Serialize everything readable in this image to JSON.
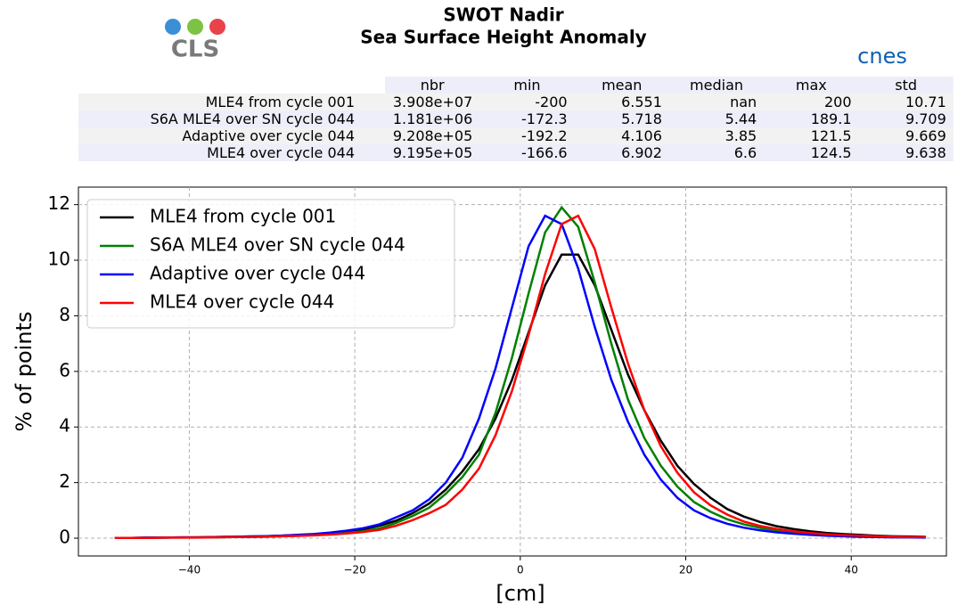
{
  "header": {
    "title": "SWOT Nadir",
    "subtitle": "Sea Surface Height Anomaly",
    "logos": [
      "CLS",
      "cnes"
    ]
  },
  "table": {
    "columns": [
      "nbr",
      "min",
      "mean",
      "median",
      "max",
      "std"
    ],
    "rows": [
      {
        "label": "MLE4 from cycle 001",
        "cells": [
          "3.908e+07",
          "-200",
          "6.551",
          "nan",
          "200",
          "10.71"
        ]
      },
      {
        "label": "S6A MLE4 over SN cycle 044",
        "cells": [
          "1.181e+06",
          "-172.3",
          "5.718",
          "5.44",
          "189.1",
          "9.709"
        ]
      },
      {
        "label": "Adaptive over cycle 044",
        "cells": [
          "9.208e+05",
          "-192.2",
          "4.106",
          "3.85",
          "121.5",
          "9.669"
        ]
      },
      {
        "label": "MLE4 over cycle 044",
        "cells": [
          "9.195e+05",
          "-166.6",
          "6.902",
          "6.6",
          "124.5",
          "9.638"
        ]
      }
    ]
  },
  "chart_data": {
    "type": "line",
    "x_label": "[cm]",
    "y_label": "% of points",
    "x": [
      -49,
      -47,
      -45,
      -43,
      -41,
      -39,
      -37,
      -35,
      -33,
      -31,
      -29,
      -27,
      -25,
      -23,
      -21,
      -19,
      -17,
      -15,
      -13,
      -11,
      -9,
      -7,
      -5,
      -3,
      -1,
      1,
      3,
      5,
      7,
      9,
      11,
      13,
      15,
      17,
      19,
      21,
      23,
      25,
      27,
      29,
      31,
      33,
      35,
      37,
      39,
      41,
      43,
      45,
      47,
      49
    ],
    "series": [
      {
        "name": "MLE4 from cycle 001",
        "color": "#000000",
        "values": [
          0.01,
          0.01,
          0.02,
          0.02,
          0.03,
          0.03,
          0.04,
          0.05,
          0.06,
          0.07,
          0.09,
          0.11,
          0.14,
          0.18,
          0.24,
          0.32,
          0.45,
          0.63,
          0.9,
          1.25,
          1.75,
          2.4,
          3.2,
          4.3,
          5.7,
          7.4,
          9.1,
          10.2,
          10.2,
          9.1,
          7.5,
          5.9,
          4.6,
          3.5,
          2.6,
          1.95,
          1.45,
          1.05,
          0.78,
          0.58,
          0.43,
          0.33,
          0.25,
          0.19,
          0.15,
          0.12,
          0.09,
          0.07,
          0.06,
          0.05
        ]
      },
      {
        "name": "S6A MLE4 over SN cycle 044",
        "color": "#008000",
        "values": [
          0.01,
          0.01,
          0.01,
          0.02,
          0.02,
          0.03,
          0.03,
          0.04,
          0.05,
          0.06,
          0.07,
          0.09,
          0.11,
          0.14,
          0.19,
          0.25,
          0.35,
          0.55,
          0.8,
          1.1,
          1.6,
          2.2,
          3.0,
          4.5,
          6.5,
          8.8,
          11.0,
          11.9,
          11.2,
          9.2,
          7.0,
          5.0,
          3.6,
          2.6,
          1.85,
          1.3,
          0.95,
          0.68,
          0.5,
          0.37,
          0.28,
          0.21,
          0.16,
          0.12,
          0.1,
          0.08,
          0.06,
          0.05,
          0.04,
          0.03
        ]
      },
      {
        "name": "Adaptive over cycle 044",
        "color": "#0000ff",
        "values": [
          0.01,
          0.01,
          0.02,
          0.02,
          0.03,
          0.03,
          0.04,
          0.05,
          0.06,
          0.07,
          0.09,
          0.12,
          0.15,
          0.2,
          0.27,
          0.36,
          0.5,
          0.75,
          1.0,
          1.4,
          2.0,
          2.9,
          4.3,
          6.1,
          8.3,
          10.5,
          11.6,
          11.3,
          9.7,
          7.6,
          5.7,
          4.2,
          3.0,
          2.1,
          1.45,
          1.0,
          0.72,
          0.52,
          0.38,
          0.28,
          0.21,
          0.16,
          0.12,
          0.09,
          0.07,
          0.05,
          0.04,
          0.03,
          0.03,
          0.02
        ]
      },
      {
        "name": "MLE4 over cycle 044",
        "color": "#ff0000",
        "values": [
          0.01,
          0.01,
          0.01,
          0.02,
          0.02,
          0.02,
          0.03,
          0.04,
          0.04,
          0.05,
          0.07,
          0.08,
          0.1,
          0.13,
          0.17,
          0.22,
          0.3,
          0.45,
          0.65,
          0.9,
          1.2,
          1.75,
          2.5,
          3.7,
          5.3,
          7.3,
          9.5,
          11.3,
          11.6,
          10.4,
          8.3,
          6.3,
          4.6,
          3.3,
          2.35,
          1.65,
          1.18,
          0.85,
          0.6,
          0.44,
          0.33,
          0.25,
          0.19,
          0.14,
          0.11,
          0.09,
          0.07,
          0.05,
          0.04,
          0.04
        ]
      }
    ],
    "xlim": [
      -53.4,
      51.5
    ],
    "ylim": [
      -0.64,
      12.63
    ],
    "xticks": [
      {
        "value": -40,
        "label": "−40"
      },
      {
        "value": -20,
        "label": "−20"
      },
      0,
      20,
      40
    ],
    "yticks": [
      0,
      2,
      4,
      6,
      8,
      10,
      12
    ],
    "grid": true,
    "legend": "upper left"
  }
}
